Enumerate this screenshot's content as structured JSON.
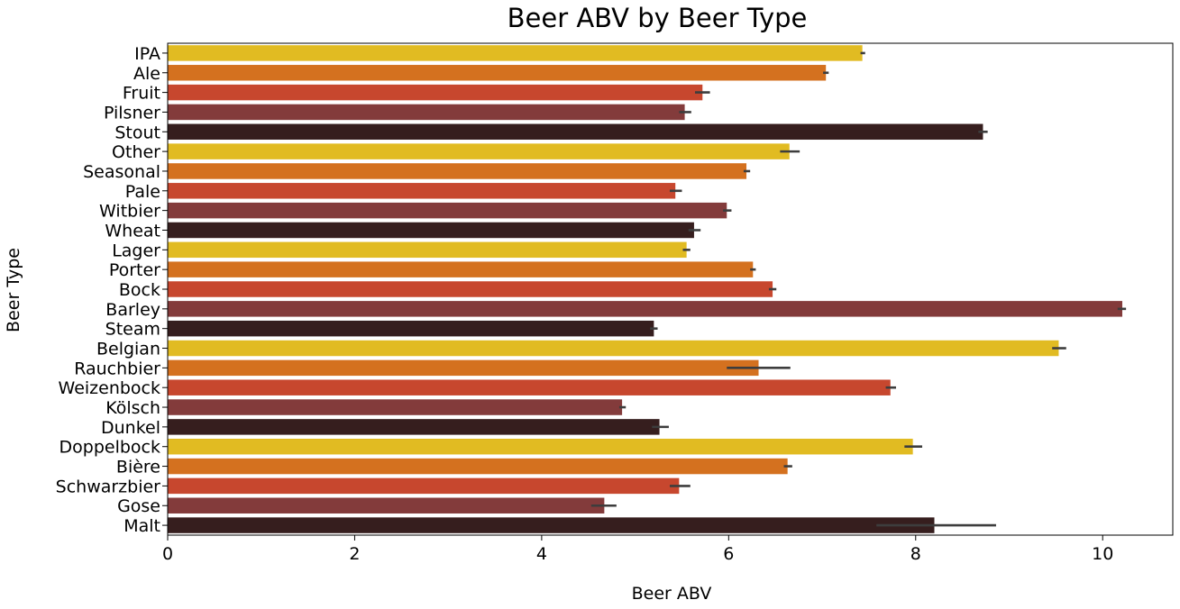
{
  "chart_data": {
    "type": "bar",
    "orientation": "horizontal",
    "title": "Beer ABV by Beer Type",
    "xlabel": "Beer ABV",
    "ylabel": "Beer Type",
    "xlim": [
      0,
      10.75
    ],
    "xticks": [
      0,
      2,
      4,
      6,
      8,
      10
    ],
    "xtick_labels": [
      "0",
      "2",
      "4",
      "6",
      "8",
      "10"
    ],
    "grid": false,
    "legend": "none",
    "palette": [
      "#e1bb22",
      "#d4711f",
      "#c7472e",
      "#833b3b",
      "#361e1e"
    ],
    "categories": [
      "IPA",
      "Ale",
      "Fruit",
      "Pilsner",
      "Stout",
      "Other",
      "Seasonal",
      "Pale",
      "Witbier",
      "Wheat",
      "Lager",
      "Porter",
      "Bock",
      "Barley",
      "Steam",
      "Belgian",
      "Rauchbier",
      "Weizenbock",
      "Kölsch",
      "Dunkel",
      "Doppelbock",
      "Bière",
      "Schwarzbier",
      "Gose",
      "Malt"
    ],
    "values": [
      7.43,
      7.04,
      5.72,
      5.53,
      8.72,
      6.65,
      6.19,
      5.43,
      5.98,
      5.63,
      5.55,
      6.26,
      6.47,
      10.21,
      5.2,
      9.53,
      6.32,
      7.73,
      4.86,
      5.26,
      7.97,
      6.63,
      5.47,
      4.67,
      8.2
    ],
    "error_low": [
      7.41,
      7.01,
      5.64,
      5.47,
      8.67,
      6.55,
      6.16,
      5.37,
      5.94,
      5.57,
      5.51,
      6.23,
      6.43,
      10.16,
      5.16,
      9.46,
      5.98,
      7.68,
      4.83,
      5.18,
      7.88,
      6.59,
      5.37,
      4.53,
      7.58
    ],
    "error_high": [
      7.46,
      7.07,
      5.8,
      5.6,
      8.77,
      6.76,
      6.23,
      5.5,
      6.03,
      5.7,
      5.59,
      6.29,
      6.51,
      10.25,
      5.24,
      9.61,
      6.66,
      7.79,
      4.9,
      5.36,
      8.07,
      6.68,
      5.59,
      4.8,
      8.86
    ]
  }
}
